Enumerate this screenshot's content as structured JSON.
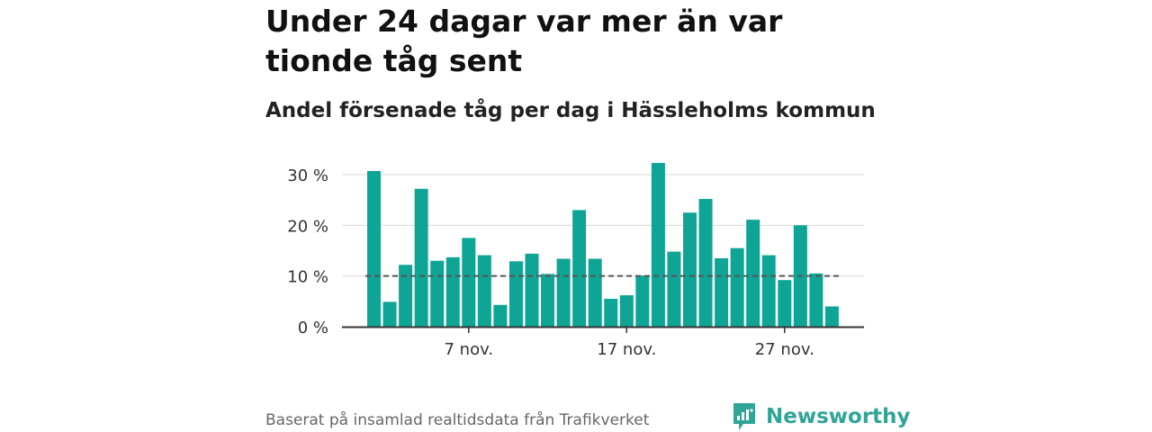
{
  "title": "Under 24 dagar var mer än var tionde tåg sent",
  "subtitle": "Andel försenade tåg per dag i Hässleholms kommun",
  "source": "Baserat på insamlad realtidsdata från Trafikverket",
  "brand": {
    "name": "Newsworthy",
    "icon": "newsworthy-logo-icon",
    "color": "#30a596"
  },
  "chart_data": {
    "type": "bar",
    "bar_color": "#0ea596",
    "x": [
      "1 nov.",
      "2 nov.",
      "3 nov.",
      "4 nov.",
      "5 nov.",
      "6 nov.",
      "7 nov.",
      "8 nov.",
      "9 nov.",
      "10 nov.",
      "11 nov.",
      "12 nov.",
      "13 nov.",
      "14 nov.",
      "15 nov.",
      "16 nov.",
      "17 nov.",
      "18 nov.",
      "19 nov.",
      "20 nov.",
      "21 nov.",
      "22 nov.",
      "23 nov.",
      "24 nov.",
      "25 nov.",
      "26 nov.",
      "27 nov.",
      "28 nov.",
      "29 nov.",
      "30 nov."
    ],
    "values": [
      30.7,
      4.9,
      12.2,
      27.2,
      13.0,
      13.7,
      17.5,
      14.1,
      4.3,
      12.9,
      14.4,
      10.4,
      13.4,
      23.0,
      13.4,
      5.5,
      6.2,
      10.1,
      32.3,
      14.8,
      22.5,
      25.2,
      13.5,
      15.5,
      21.1,
      14.1,
      9.2,
      20.0,
      10.5,
      4.0
    ],
    "ylim": [
      0,
      32.5
    ],
    "yticks": [
      0,
      10,
      20,
      30
    ],
    "ytick_labels": [
      "0 %",
      "10 %",
      "20 %",
      "30 %"
    ],
    "xtick_labels": [
      {
        "index": 6,
        "label": "7 nov."
      },
      {
        "index": 16,
        "label": "17 nov."
      },
      {
        "index": 26,
        "label": "27 nov."
      }
    ],
    "reference_line": {
      "value": 10,
      "style": "dashed",
      "color": "#555555"
    },
    "grid": true,
    "xlabel": "",
    "ylabel": ""
  }
}
